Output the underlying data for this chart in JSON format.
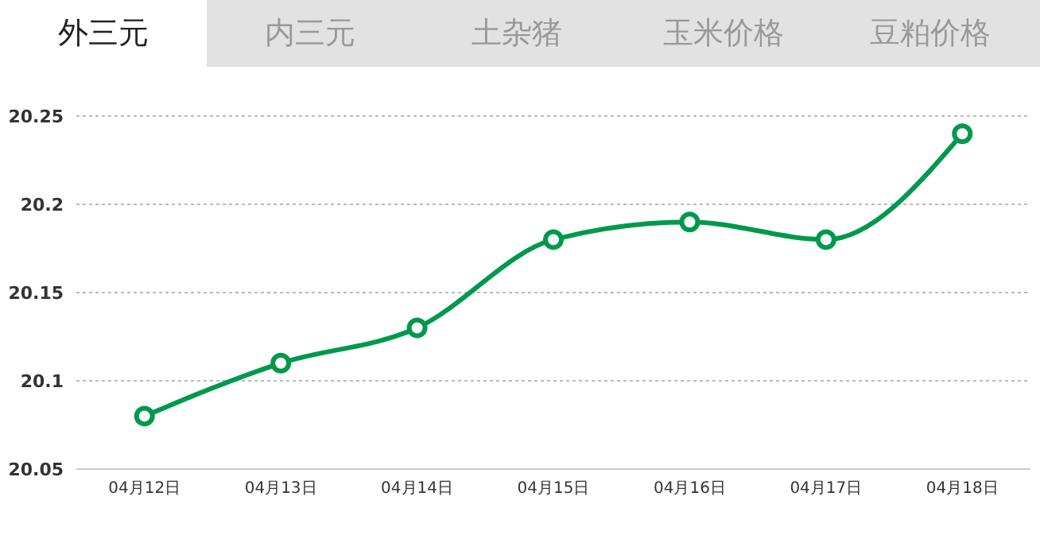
{
  "chart_data": {
    "type": "line",
    "title": "外三元",
    "annotations": [
      "内三元",
      "土杂猪",
      "玉米价格",
      "豆粕价格"
    ],
    "categories": [
      "04月12日",
      "04月13日",
      "04月14日",
      "04月15日",
      "04月16日",
      "04月17日",
      "04月18日"
    ],
    "series": [
      {
        "color": "#00994c",
        "values": [
          20.08,
          20.11,
          20.13,
          20.18,
          20.19,
          20.18,
          20.24
        ]
      }
    ],
    "ylim": [
      20.05,
      20.25
    ],
    "yticks": [
      20.05,
      20.1,
      20.15,
      20.2,
      20.25
    ],
    "grid": "y",
    "marker": "circle",
    "line_style": "solid",
    "legend": false
  }
}
